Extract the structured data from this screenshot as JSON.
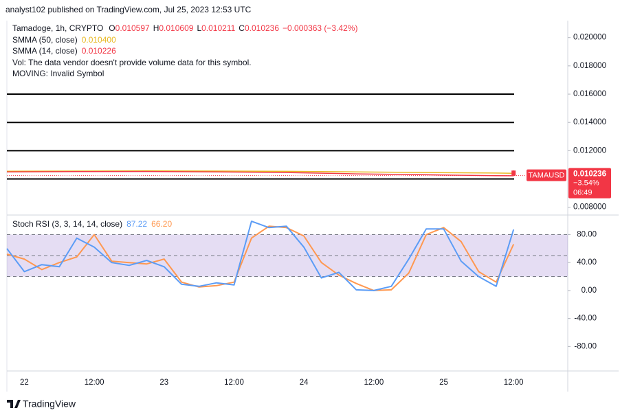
{
  "header": {
    "publisher": "analyst102 published on TradingView.com, Jul 25, 2023 12:53 UTC",
    "brand": "TradingView"
  },
  "chart_data": [
    {
      "type": "candlestick",
      "title": "Tamadoge, 1h, CRYPTO",
      "ohlc_labels": [
        "O",
        "H",
        "L",
        "C"
      ],
      "candle": {
        "x": 84,
        "open": 0.010597,
        "high": 0.010609,
        "low": 0.010211,
        "close": 0.010236
      },
      "change": "−0.000363 (−3.42%)",
      "notes": [
        "Vol: The data vendor doesn't provide volume data for this symbol.",
        "MOVING: Invalid Symbol"
      ],
      "x": [
        -3,
        9,
        21,
        33,
        45,
        57,
        69,
        81,
        84
      ],
      "series": [
        {
          "name": "SMMA (50, close)",
          "color": "#e8b923",
          "values": [
            0.01055,
            0.01056,
            0.01057,
            0.01056,
            0.01054,
            0.0105,
            0.01046,
            0.01042,
            0.0104
          ],
          "value_labels": [
            null,
            null,
            null,
            null,
            null,
            null,
            null,
            null,
            "0.010400"
          ]
        },
        {
          "name": "SMMA (14, close)",
          "color": "#f23645",
          "values": [
            0.0105,
            0.01052,
            0.01053,
            0.0105,
            0.01046,
            0.01036,
            0.0103,
            0.01023,
            0.010226
          ]
        }
      ],
      "levels": [
        0.016,
        0.014,
        0.012,
        0.01
      ],
      "price_label": {
        "symbol": "TAMAUSD",
        "value": 0.010236,
        "change": "−3.54%",
        "countdown": "06:49"
      },
      "xlim": [
        -3,
        93.3
      ],
      "xticks": [
        {
          "value": 0,
          "label": "22"
        },
        {
          "value": 12,
          "label": "12:00"
        },
        {
          "value": 24,
          "label": "23"
        },
        {
          "value": 36,
          "label": "12:00"
        },
        {
          "value": 48,
          "label": "24"
        },
        {
          "value": 60,
          "label": "12:00"
        },
        {
          "value": 72,
          "label": "25"
        },
        {
          "value": 84,
          "label": "12:00"
        }
      ],
      "ylim": [
        0.0075,
        0.0212
      ],
      "yticks": [
        {
          "value": 0.02,
          "label": "0.020000"
        },
        {
          "value": 0.018,
          "label": "0.018000"
        },
        {
          "value": 0.016,
          "label": "0.016000"
        },
        {
          "value": 0.014,
          "label": "0.014000"
        },
        {
          "value": 0.012,
          "label": "0.012000"
        },
        {
          "value": 0.008,
          "label": "0.008000"
        }
      ]
    },
    {
      "type": "line",
      "title": "Stoch RSI (3, 3, 14, 14, close)",
      "x": [
        -3,
        0,
        3,
        6,
        9,
        12,
        15,
        18,
        21,
        24,
        27,
        30,
        33,
        36,
        39,
        42,
        45,
        48,
        51,
        54,
        57,
        60,
        63,
        66,
        69,
        72,
        75,
        78,
        81,
        84
      ],
      "series": [
        {
          "color": "#5b9cf6",
          "values": [
            60,
            27,
            37,
            34,
            75,
            62,
            40,
            36,
            43,
            34,
            9,
            6,
            11,
            8,
            99,
            90,
            92,
            62,
            18,
            26,
            1,
            0,
            6,
            45,
            88,
            88,
            42,
            20,
            6,
            87.22
          ]
        },
        {
          "color": "#ff9850",
          "values": [
            52,
            45,
            30,
            40,
            48,
            80,
            42,
            40,
            38,
            45,
            12,
            5,
            7,
            12,
            75,
            92,
            90,
            78,
            40,
            22,
            10,
            0,
            1,
            25,
            80,
            90,
            70,
            27,
            12,
            66.2
          ],
          "value_labels": [
            null,
            null,
            null,
            null,
            null,
            null,
            null,
            null,
            null,
            null,
            null,
            null,
            null,
            null,
            null,
            null,
            null,
            null,
            null,
            null,
            null,
            null,
            null,
            null,
            null,
            null,
            null,
            null,
            null,
            "66.20"
          ]
        }
      ],
      "band": [
        20,
        80
      ],
      "midline": 50,
      "xlim": [
        -3,
        93.3
      ],
      "ylim": [
        -115,
        106
      ],
      "yticks": [
        {
          "value": 80,
          "label": "80.00"
        },
        {
          "value": 40,
          "label": "40.00"
        },
        {
          "value": 0,
          "label": "0.00"
        },
        {
          "value": -40,
          "label": "-40.00"
        },
        {
          "value": -80,
          "label": "-80.00"
        }
      ]
    }
  ]
}
